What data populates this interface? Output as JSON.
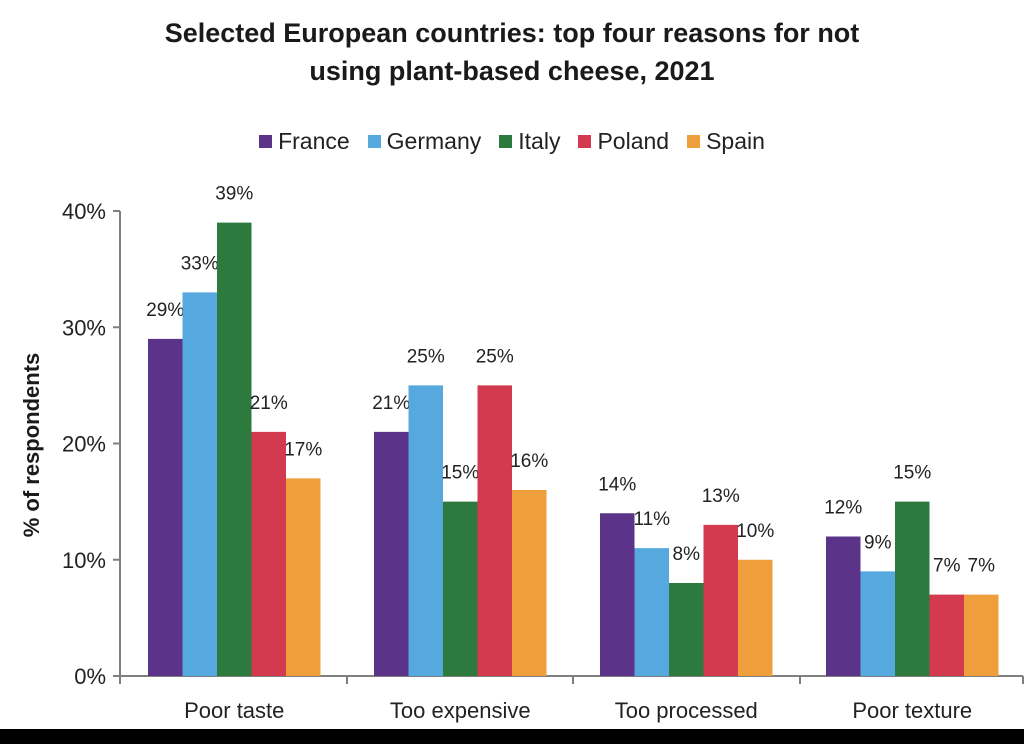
{
  "chart_data": {
    "type": "bar",
    "title_lines": [
      "Selected European countries: top four reasons for not",
      "using plant-based cheese, 2021"
    ],
    "ylabel": "% of respondents",
    "xlabel": "",
    "ylim": [
      0,
      40
    ],
    "yticks": [
      0,
      10,
      20,
      30,
      40
    ],
    "ytick_labels": [
      "0%",
      "10%",
      "20%",
      "30%",
      "40%"
    ],
    "categories": [
      "Poor taste",
      "Too expensive",
      "Too processed",
      "Poor texture"
    ],
    "series": [
      {
        "name": "France",
        "color": "#5b3489",
        "values": [
          29,
          21,
          14,
          12
        ]
      },
      {
        "name": "Germany",
        "color": "#56a9df",
        "values": [
          33,
          25,
          11,
          9
        ]
      },
      {
        "name": "Italy",
        "color": "#2c7a3e",
        "values": [
          39,
          15,
          8,
          15
        ]
      },
      {
        "name": "Poland",
        "color": "#d33a4f",
        "values": [
          21,
          25,
          13,
          7
        ]
      },
      {
        "name": "Spain",
        "color": "#ef9e3c",
        "values": [
          17,
          16,
          10,
          7
        ]
      }
    ],
    "value_labels": [
      [
        "29%",
        "21%",
        "14%",
        "12%"
      ],
      [
        "33%",
        "25%",
        "11%",
        "9%"
      ],
      [
        "39%",
        "15%",
        "8%",
        "15%"
      ],
      [
        "21%",
        "25%",
        "13%",
        "7%"
      ],
      [
        "17%",
        "16%",
        "10%",
        "7%"
      ]
    ],
    "legend_position": "top-center",
    "grid": false
  }
}
